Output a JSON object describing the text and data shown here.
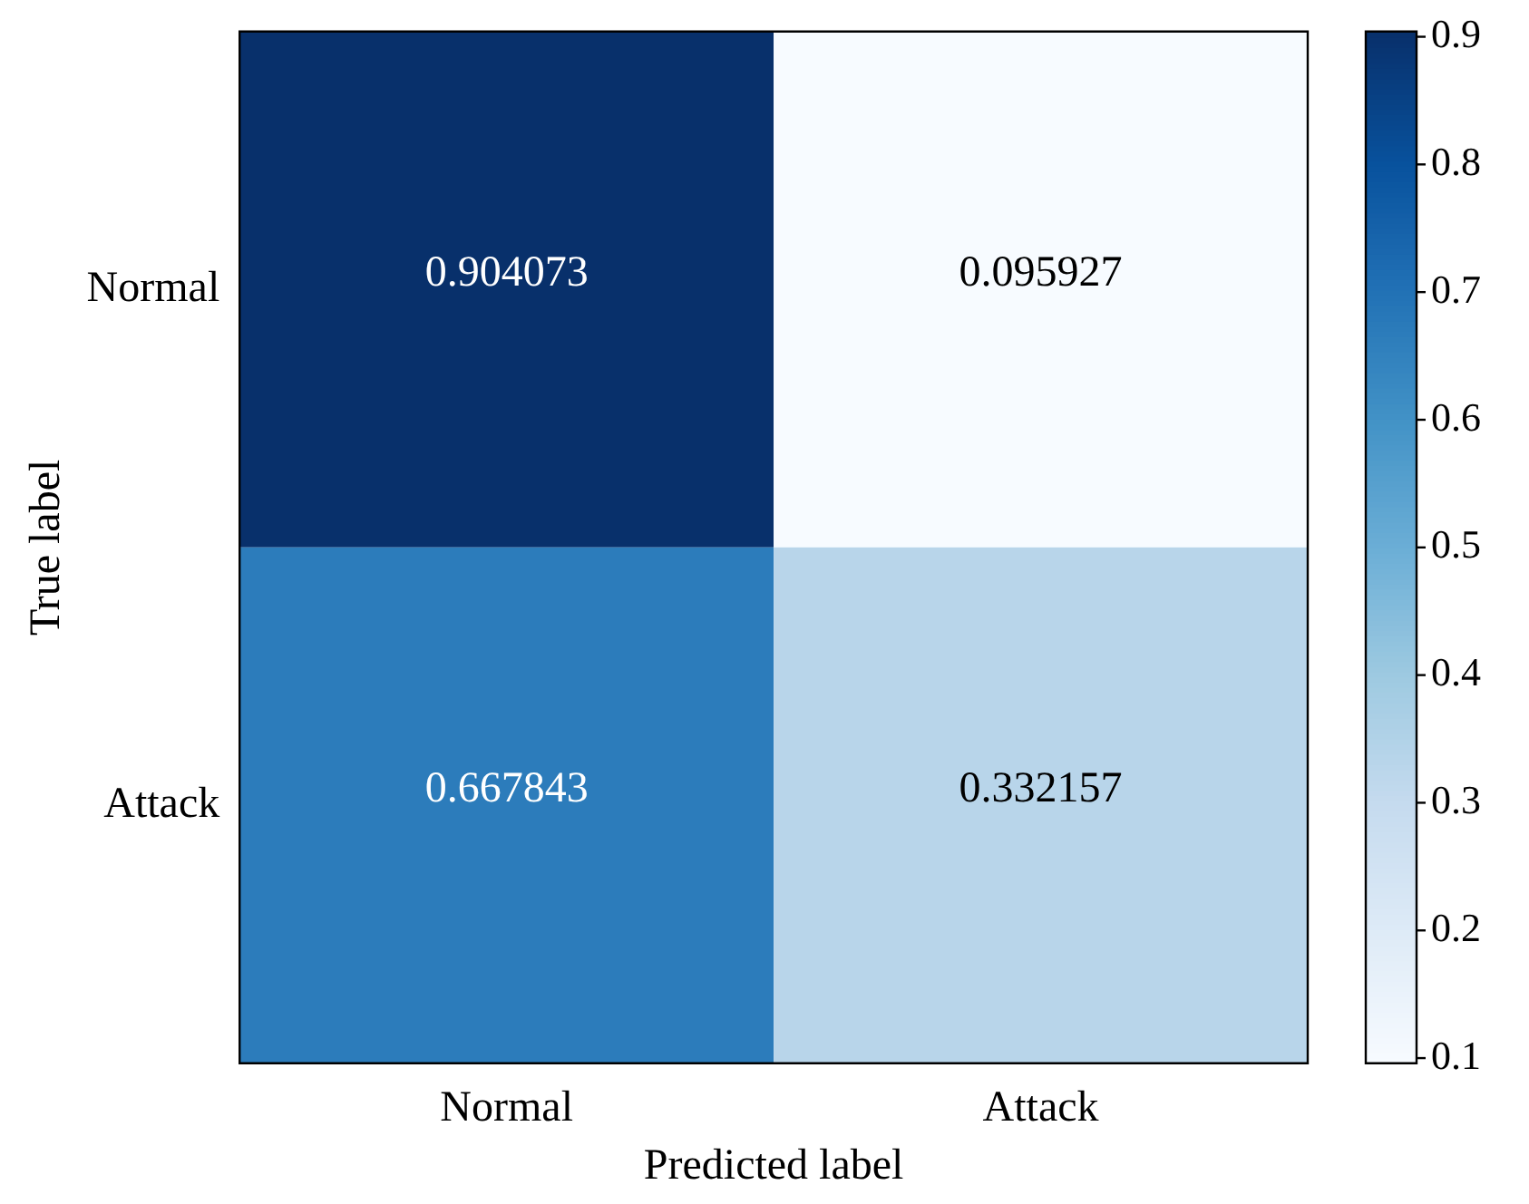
{
  "chart_data": {
    "type": "heatmap",
    "xlabel": "Predicted label",
    "ylabel": "True label",
    "categories": [
      "Normal",
      "Attack"
    ],
    "y_categories": [
      "Normal",
      "Attack"
    ],
    "cells": [
      [
        0.904073,
        0.095927
      ],
      [
        0.667843,
        0.332157
      ]
    ],
    "data_labels": true,
    "clim": [
      0.095927,
      0.904073
    ],
    "cticks": [
      0.1,
      0.2,
      0.3,
      0.4,
      0.5,
      0.6,
      0.7,
      0.8,
      0.9
    ]
  }
}
